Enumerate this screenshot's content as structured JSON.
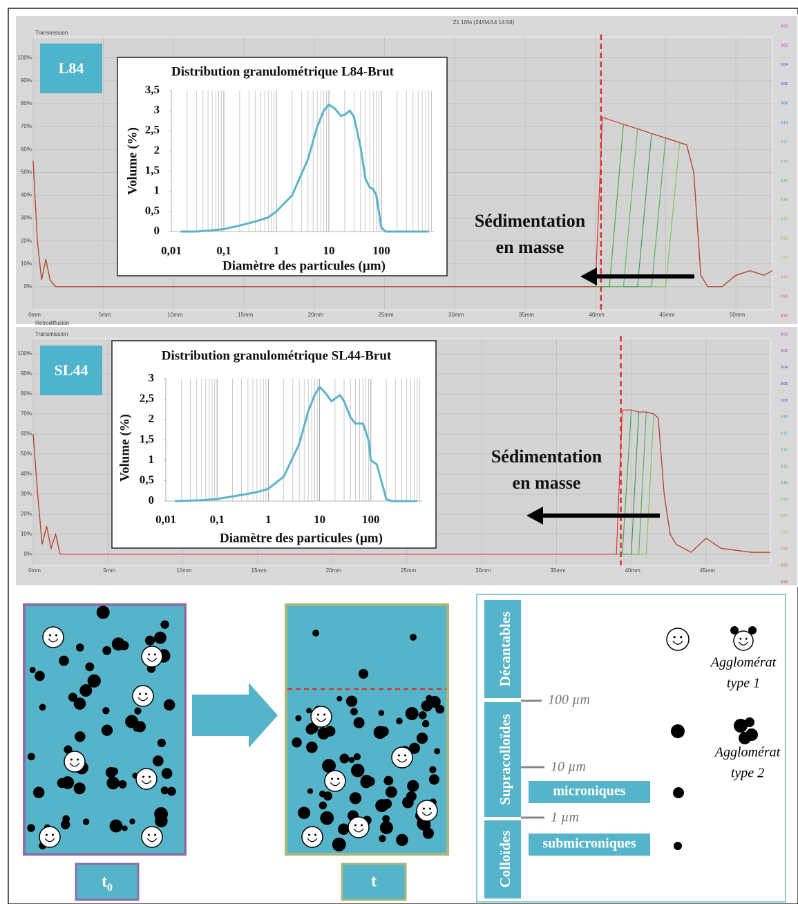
{
  "chart_data": [
    {
      "type": "line",
      "header": "Z1 10% (24/04/14 14:58)",
      "section_label": "Transmission",
      "next_section_label": "Rétrodiffusion",
      "badge": "L84",
      "annotation": [
        "Sédimentation",
        "en masse"
      ],
      "front": 40.4,
      "xlim": [
        0,
        52.6
      ],
      "ylim": [
        -10,
        109
      ],
      "grid": true,
      "xticks": [
        {
          "value": 0,
          "label": "0mm"
        },
        {
          "value": 5,
          "label": "5mm"
        },
        {
          "value": 10,
          "label": "10mm"
        },
        {
          "value": 15,
          "label": "15mm"
        },
        {
          "value": 20,
          "label": "20mm"
        },
        {
          "value": 25,
          "label": "25mm"
        },
        {
          "value": 30,
          "label": "30mm"
        },
        {
          "value": 35,
          "label": "35mm"
        },
        {
          "value": 40,
          "label": "40mm"
        },
        {
          "value": 45,
          "label": "45mm"
        },
        {
          "value": 50,
          "label": "50mm"
        }
      ],
      "yticks": [
        {
          "value": 0,
          "label": "0%"
        },
        {
          "value": 10,
          "label": "10%"
        },
        {
          "value": 20,
          "label": "20%"
        },
        {
          "value": 30,
          "label": "30%"
        },
        {
          "value": 40,
          "label": "40%"
        },
        {
          "value": 50,
          "label": "50%"
        },
        {
          "value": 60,
          "label": "60%"
        },
        {
          "value": 70,
          "label": "70%"
        },
        {
          "value": 80,
          "label": "80%"
        },
        {
          "value": 90,
          "label": "90%"
        },
        {
          "value": 100,
          "label": "100%"
        }
      ],
      "time_labels": [
        "0:00",
        "0:02",
        "0:04",
        "0:06",
        "0:08",
        "0:10",
        "0:12",
        "0:14",
        "0:16",
        "0:18",
        "0:20",
        "0:22",
        "0:24",
        "0:26",
        "0:28",
        "0:30"
      ],
      "x": [
        0,
        0.3,
        0.6,
        0.9,
        1.2,
        1.6,
        2,
        10,
        20,
        30,
        40,
        40.5,
        41,
        42,
        43,
        44,
        45,
        46,
        46.5,
        47,
        47.5,
        48,
        49,
        50,
        51,
        52,
        52.6
      ],
      "series": [
        {
          "color": "#7ac943",
          "values": [
            55,
            20,
            3,
            12,
            3,
            0,
            0,
            0,
            0,
            0,
            0,
            0,
            0,
            0,
            0,
            0,
            0,
            63,
            62,
            50,
            5,
            0,
            0,
            5,
            7,
            5,
            7
          ]
        },
        {
          "color": "#4caf50",
          "values": [
            55,
            20,
            3,
            12,
            3,
            0,
            0,
            0,
            0,
            0,
            0,
            0,
            0,
            0,
            0,
            0,
            65,
            63,
            62,
            50,
            5,
            0,
            0,
            5,
            7,
            5,
            7
          ]
        },
        {
          "color": "#2e9b4f",
          "values": [
            55,
            20,
            3,
            12,
            3,
            0,
            0,
            0,
            0,
            0,
            0,
            0,
            0,
            0,
            0,
            67,
            65,
            63,
            62,
            50,
            5,
            0,
            0,
            5,
            7,
            5,
            7
          ]
        },
        {
          "color": "#5cb85c",
          "values": [
            55,
            20,
            3,
            12,
            3,
            0,
            0,
            0,
            0,
            0,
            0,
            0,
            0,
            0,
            69,
            67,
            65,
            63,
            62,
            50,
            5,
            0,
            0,
            5,
            7,
            5,
            7
          ]
        },
        {
          "color": "#3aa635",
          "values": [
            55,
            20,
            3,
            12,
            3,
            0,
            0,
            0,
            0,
            0,
            0,
            0,
            0,
            71,
            69,
            67,
            65,
            63,
            62,
            50,
            5,
            0,
            0,
            5,
            7,
            5,
            7
          ]
        },
        {
          "color": "#d9302a",
          "values": [
            55,
            20,
            3,
            12,
            3,
            0,
            0,
            0,
            0,
            0,
            0,
            74,
            73,
            71,
            69,
            67,
            65,
            63,
            62,
            50,
            5,
            0,
            0,
            5,
            7,
            5,
            7
          ]
        }
      ]
    },
    {
      "type": "line",
      "title": "Distribution granulométrique L84-Brut",
      "xlabel": "Diamètre des particules (µm)",
      "ylabel": "Volume (%)",
      "log_x": true,
      "color": "#5ab4c9",
      "xlim": [
        0.01,
        1000
      ],
      "ylim": [
        0,
        3.5
      ],
      "xticks": [
        {
          "value": 0.01,
          "label": "0,01"
        },
        {
          "value": 0.1,
          "label": "0,1"
        },
        1,
        10,
        100
      ],
      "yticks": [
        0,
        {
          "value": 0.5,
          "label": "0,5"
        },
        1,
        {
          "value": 1.5,
          "label": "1,5"
        },
        2,
        {
          "value": 2.5,
          "label": "2,5"
        },
        3,
        {
          "value": 3.5,
          "label": "3,5"
        }
      ],
      "x": [
        0.015,
        0.03,
        0.05,
        0.1,
        0.2,
        0.4,
        0.7,
        1,
        2,
        4,
        6,
        8,
        10,
        13,
        17,
        20,
        25,
        30,
        40,
        50,
        60,
        70,
        80,
        100,
        120,
        800
      ],
      "values": [
        0,
        0,
        0.02,
        0.06,
        0.15,
        0.25,
        0.35,
        0.5,
        0.9,
        1.8,
        2.6,
        3.0,
        3.15,
        3.05,
        2.87,
        2.9,
        3.0,
        2.85,
        2.1,
        1.3,
        1.1,
        1.05,
        0.9,
        0.1,
        0,
        0
      ]
    },
    {
      "type": "line",
      "section_label": "Transmission",
      "badge": "SL44",
      "annotation": [
        "Sédimentation",
        "en masse"
      ],
      "front": 39.3,
      "xlim": [
        0,
        49.3
      ],
      "ylim": [
        -5.5,
        107.6
      ],
      "grid": true,
      "xticks": [
        {
          "value": 0,
          "label": "0mm"
        },
        {
          "value": 5,
          "label": "5mm"
        },
        {
          "value": 10,
          "label": "10mm"
        },
        {
          "value": 15,
          "label": "15mm"
        },
        {
          "value": 20,
          "label": "20mm"
        },
        {
          "value": 25,
          "label": "25mm"
        },
        {
          "value": 30,
          "label": "30mm"
        },
        {
          "value": 35,
          "label": "35mm"
        },
        {
          "value": 40,
          "label": "40mm"
        },
        {
          "value": 45,
          "label": "45mm"
        }
      ],
      "yticks": [
        {
          "value": 0,
          "label": "0%"
        },
        {
          "value": 10,
          "label": "10%"
        },
        {
          "value": 20,
          "label": "20%"
        },
        {
          "value": 30,
          "label": "30%"
        },
        {
          "value": 40,
          "label": "40%"
        },
        {
          "value": 50,
          "label": "50%"
        },
        {
          "value": 60,
          "label": "60%"
        },
        {
          "value": 70,
          "label": "70%"
        },
        {
          "value": 80,
          "label": "80%"
        },
        {
          "value": 90,
          "label": "90%"
        },
        {
          "value": 100,
          "label": "100%"
        }
      ],
      "time_labels": [
        "0:00",
        "0:02",
        "0:04",
        "0:06",
        "0:08",
        "0:10",
        "0:12",
        "0:14",
        "0:16",
        "0:18",
        "0:20",
        "0:22",
        "0:24",
        "0:26",
        "0:28",
        "0:30"
      ],
      "x": [
        0,
        0.3,
        0.6,
        0.9,
        1.2,
        1.5,
        1.8,
        2.5,
        10,
        20,
        30,
        39,
        39.4,
        40,
        40.5,
        41,
        41.5,
        41.8,
        42.2,
        42.6,
        43,
        44,
        45,
        46,
        47,
        48,
        49.3
      ],
      "series": [
        {
          "color": "#7ac943",
          "values": [
            60,
            30,
            5,
            14,
            3,
            10,
            0,
            0,
            0,
            0,
            0,
            0,
            0,
            0,
            0,
            0,
            70,
            68,
            30,
            10,
            5,
            1,
            8,
            3,
            2,
            1,
            1
          ]
        },
        {
          "color": "#4caf50",
          "values": [
            60,
            30,
            5,
            14,
            3,
            10,
            0,
            0,
            0,
            0,
            0,
            0,
            0,
            0,
            0,
            71,
            70,
            68,
            30,
            10,
            5,
            1,
            8,
            3,
            2,
            1,
            1
          ]
        },
        {
          "color": "#2e9b4f",
          "values": [
            60,
            30,
            5,
            14,
            3,
            10,
            0,
            0,
            0,
            0,
            0,
            0,
            0,
            0,
            71,
            71,
            70,
            68,
            30,
            10,
            5,
            1,
            8,
            3,
            2,
            1,
            1
          ]
        },
        {
          "color": "#3aa635",
          "values": [
            60,
            30,
            5,
            14,
            3,
            10,
            0,
            0,
            0,
            0,
            0,
            0,
            0,
            72,
            71,
            71,
            70,
            68,
            30,
            10,
            5,
            1,
            8,
            3,
            2,
            1,
            1
          ]
        },
        {
          "color": "#d9302a",
          "values": [
            60,
            30,
            5,
            14,
            3,
            10,
            0,
            0,
            0,
            0,
            0,
            0,
            72,
            72,
            71,
            71,
            70,
            68,
            30,
            10,
            5,
            1,
            8,
            3,
            2,
            1,
            1
          ]
        }
      ]
    },
    {
      "type": "line",
      "title": "Distribution granulométrique SL44-Brut",
      "xlabel": "Diamètre des particules (µm)",
      "ylabel": "Volume (%)",
      "log_x": true,
      "color": "#5ab4c9",
      "xlim": [
        0.01,
        1000
      ],
      "ylim": [
        0,
        3
      ],
      "xticks": [
        {
          "value": 0.01,
          "label": "0,01"
        },
        {
          "value": 0.1,
          "label": "0,1"
        },
        1,
        10,
        100
      ],
      "yticks": [
        0,
        {
          "value": 0.5,
          "label": "0,5"
        },
        1,
        {
          "value": 1.5,
          "label": "1,5"
        },
        2,
        {
          "value": 2.5,
          "label": "2,5"
        },
        3
      ],
      "x": [
        0.015,
        0.05,
        0.1,
        0.3,
        0.6,
        1,
        2,
        4,
        6,
        8,
        10,
        13,
        17,
        22,
        25,
        30,
        40,
        50,
        70,
        90,
        100,
        130,
        160,
        200,
        250,
        800
      ],
      "values": [
        0,
        0.02,
        0.05,
        0.15,
        0.22,
        0.3,
        0.6,
        1.4,
        2.2,
        2.6,
        2.8,
        2.65,
        2.45,
        2.55,
        2.6,
        2.45,
        2.05,
        1.9,
        1.9,
        1.5,
        1.0,
        0.9,
        0.5,
        0.05,
        0,
        0
      ]
    }
  ],
  "diagram": {
    "t0": {
      "main": "t",
      "sub": "0"
    },
    "t": "t",
    "classes": [
      "Décantables",
      "Supracolloïdes",
      "Colloïdes"
    ],
    "sizes": [
      "100 µm",
      "10 µm",
      "1 µm"
    ],
    "fractions": [
      "microniques",
      "submicroniques"
    ],
    "agglomerates": [
      [
        "Agglomérat",
        "type 1"
      ],
      [
        "Agglomérat",
        "type 2"
      ]
    ]
  }
}
